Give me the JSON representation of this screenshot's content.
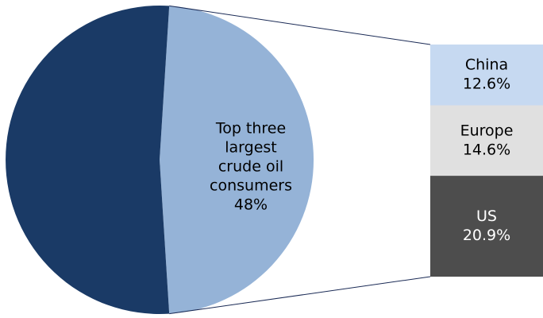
{
  "chart_data": {
    "type": "pie",
    "subtype": "bar-of-pie",
    "title": "",
    "pie": {
      "slices": [
        {
          "name": "",
          "value": 52,
          "color": "#1a3a66",
          "label_lines": []
        },
        {
          "name": "Top three largest crude oil consumers",
          "value": 48,
          "color": "#95b3d7",
          "label_lines": [
            "Top three",
            "largest",
            "crude oil",
            "consumers",
            "48%"
          ],
          "label_color": "#000000"
        }
      ]
    },
    "breakdown": {
      "of_slice": "Top three largest crude oil consumers",
      "segments": [
        {
          "name": "China",
          "value": 12.6,
          "label": "12.6%",
          "color": "#c6d9f1",
          "text_color": "#000000"
        },
        {
          "name": "Europe",
          "value": 14.6,
          "label": "14.6%",
          "color": "#e0e0e0",
          "text_color": "#000000"
        },
        {
          "name": "US",
          "value": 20.9,
          "label": "20.9%",
          "color": "#4d4d4d",
          "text_color": "#ffffff"
        }
      ]
    },
    "connector_color": "#1a2a55",
    "legend": "none",
    "grid": false
  }
}
